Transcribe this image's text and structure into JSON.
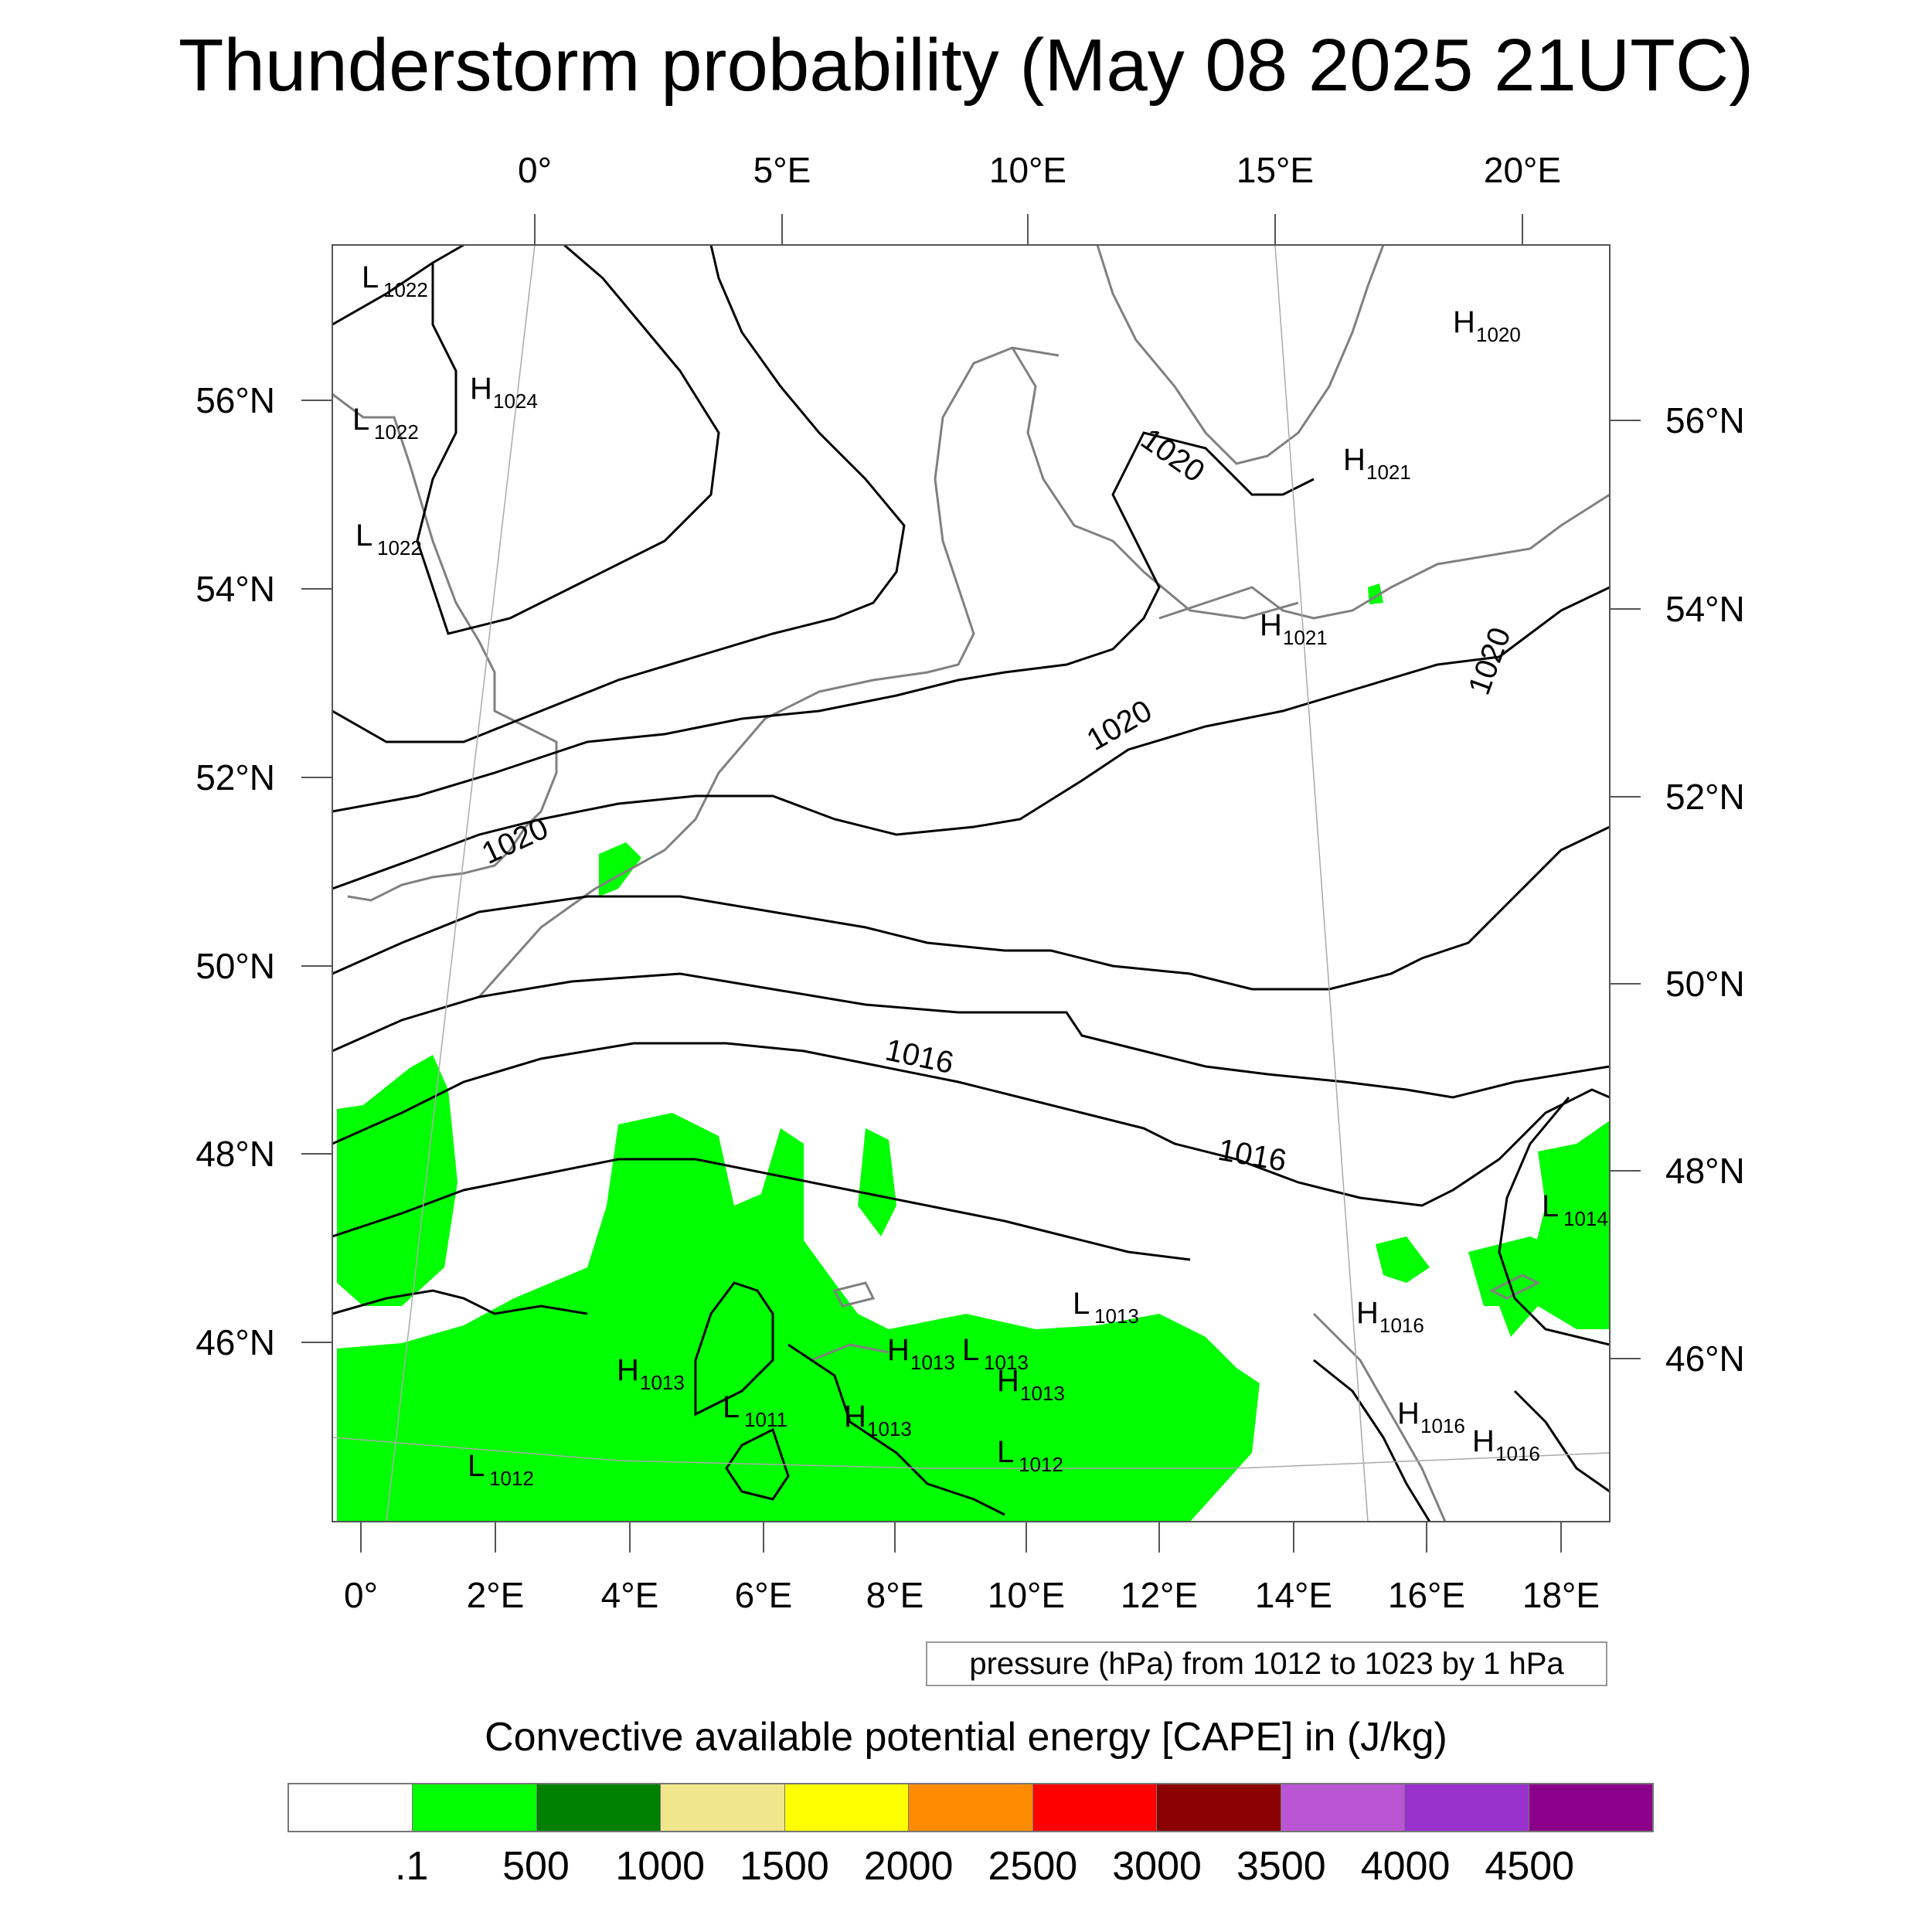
{
  "title": "Thunderstorm probability (May 08 2025 21UTC)",
  "top_lon_labels": [
    "0°",
    "5°E",
    "10°E",
    "15°E",
    "20°E"
  ],
  "bottom_lon_labels": [
    "0°",
    "2°E",
    "4°E",
    "6°E",
    "8°E",
    "10°E",
    "12°E",
    "14°E",
    "16°E",
    "18°E"
  ],
  "left_lat_labels": [
    "56°N",
    "54°N",
    "52°N",
    "50°N",
    "48°N",
    "46°N"
  ],
  "right_lat_labels": [
    "56°N",
    "54°N",
    "52°N",
    "50°N",
    "48°N",
    "46°N"
  ],
  "isobar_labels": [
    "1020",
    "1020",
    "1020",
    "1020",
    "1016",
    "1016"
  ],
  "pressure_centers": [
    {
      "type": "L",
      "value": "1022"
    },
    {
      "type": "H",
      "value": "1024"
    },
    {
      "type": "L",
      "value": "1022"
    },
    {
      "type": "L",
      "value": "1022"
    },
    {
      "type": "H",
      "value": "1020"
    },
    {
      "type": "H",
      "value": "1021"
    },
    {
      "type": "H",
      "value": "1021"
    },
    {
      "type": "L",
      "value": "1014"
    },
    {
      "type": "L",
      "value": "1013"
    },
    {
      "type": "H",
      "value": "1016"
    },
    {
      "type": "H",
      "value": "1013"
    },
    {
      "type": "L",
      "value": "1013"
    },
    {
      "type": "H",
      "value": "1013"
    },
    {
      "type": "H",
      "value": "1013"
    },
    {
      "type": "L",
      "value": "1011"
    },
    {
      "type": "H",
      "value": "1013"
    },
    {
      "type": "H",
      "value": "1016"
    },
    {
      "type": "H",
      "value": "1016"
    },
    {
      "type": "L",
      "value": "1012"
    },
    {
      "type": "L",
      "value": "1012"
    }
  ],
  "contour_info": "pressure (hPa) from 1012 to 1023 by 1 hPa",
  "legend": {
    "title": "Convective available potential energy [CAPE] in (J/kg)",
    "colors": [
      "#ffffff",
      "#00ff00",
      "#008000",
      "#f0e68c",
      "#ffff00",
      "#ff8c00",
      "#ff0000",
      "#8b0000",
      "#ba55d3",
      "#9932cc",
      "#8b008b"
    ],
    "labels": [
      ".1",
      "500",
      "1000",
      "1500",
      "2000",
      "2500",
      "3000",
      "3500",
      "4000",
      "4500"
    ]
  },
  "colors": {
    "cape_shading": "#00ff00",
    "coastline": "#808080",
    "isobar": "#000000",
    "gridline": "#aaaaaa"
  }
}
